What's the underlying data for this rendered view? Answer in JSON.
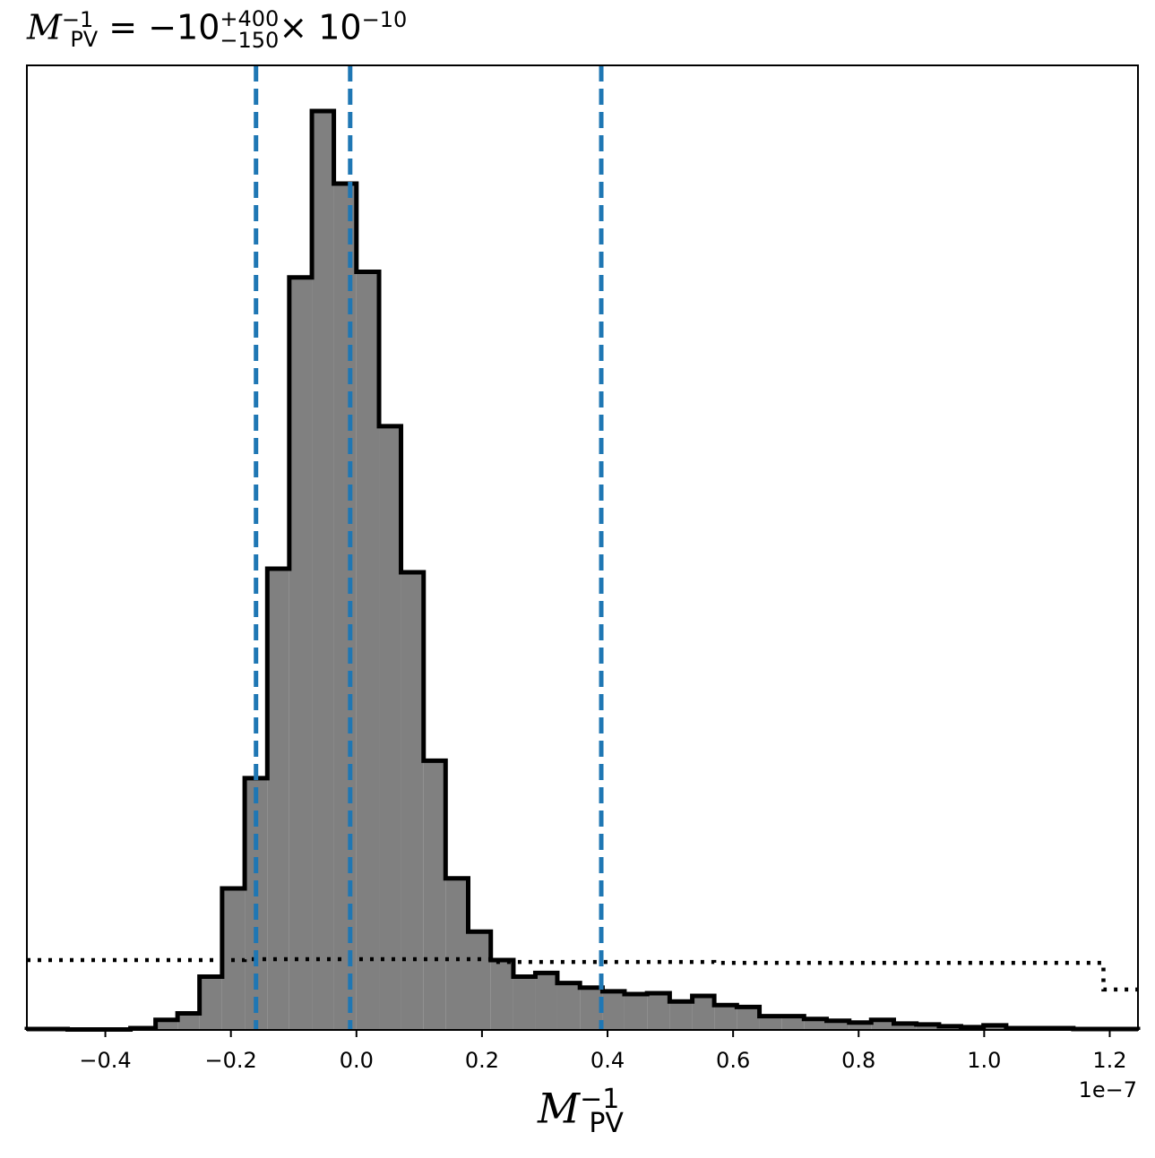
{
  "title": {
    "symbol": "M",
    "subscript": "PV",
    "superscript": "−1",
    "equals": " = −10",
    "err_plus": "+400",
    "err_minus": "−150",
    "times": "× 10",
    "exponent": "−10"
  },
  "xlabel": {
    "symbol": "M",
    "subscript": "PV",
    "superscript": "−1"
  },
  "offset_text": "1e−7",
  "chart_data": {
    "type": "histogram",
    "x_unit_scale": 1e-07,
    "xlim": [
      -0.525,
      1.245
    ],
    "ylim": [
      0,
      1
    ],
    "grid": false,
    "xticks": [
      {
        "value": -0.4,
        "label": "−0.4"
      },
      {
        "value": -0.2,
        "label": "−0.2"
      },
      {
        "value": 0.0,
        "label": "0.0"
      },
      {
        "value": 0.2,
        "label": "0.2"
      },
      {
        "value": 0.4,
        "label": "0.4"
      },
      {
        "value": 0.6,
        "label": "0.6"
      },
      {
        "value": 0.8,
        "label": "0.8"
      },
      {
        "value": 1.0,
        "label": "1.0"
      },
      {
        "value": 1.2,
        "label": "1.2"
      }
    ],
    "posterior": {
      "color": "#808080",
      "edge_color": "#000000",
      "bins": [
        {
          "x0": -0.36,
          "x1": -0.32,
          "h": 0.002
        },
        {
          "x0": -0.32,
          "x1": -0.285,
          "h": 0.011
        },
        {
          "x0": -0.285,
          "x1": -0.25,
          "h": 0.018
        },
        {
          "x0": -0.25,
          "x1": -0.214,
          "h": 0.058
        },
        {
          "x0": -0.214,
          "x1": -0.178,
          "h": 0.154
        },
        {
          "x0": -0.178,
          "x1": -0.142,
          "h": 0.274
        },
        {
          "x0": -0.142,
          "x1": -0.107,
          "h": 0.502
        },
        {
          "x0": -0.107,
          "x1": -0.071,
          "h": 0.819
        },
        {
          "x0": -0.071,
          "x1": -0.036,
          "h": 1.0
        },
        {
          "x0": -0.036,
          "x1": 0.0,
          "h": 0.921
        },
        {
          "x0": 0.0,
          "x1": 0.036,
          "h": 0.825
        },
        {
          "x0": 0.036,
          "x1": 0.071,
          "h": 0.657
        },
        {
          "x0": 0.071,
          "x1": 0.107,
          "h": 0.498
        },
        {
          "x0": 0.107,
          "x1": 0.142,
          "h": 0.293
        },
        {
          "x0": 0.142,
          "x1": 0.178,
          "h": 0.165
        },
        {
          "x0": 0.178,
          "x1": 0.214,
          "h": 0.107
        },
        {
          "x0": 0.214,
          "x1": 0.25,
          "h": 0.076
        },
        {
          "x0": 0.25,
          "x1": 0.285,
          "h": 0.058
        },
        {
          "x0": 0.285,
          "x1": 0.32,
          "h": 0.062
        },
        {
          "x0": 0.32,
          "x1": 0.356,
          "h": 0.051
        },
        {
          "x0": 0.356,
          "x1": 0.392,
          "h": 0.046
        },
        {
          "x0": 0.392,
          "x1": 0.427,
          "h": 0.042
        },
        {
          "x0": 0.427,
          "x1": 0.463,
          "h": 0.039
        },
        {
          "x0": 0.463,
          "x1": 0.499,
          "h": 0.04
        },
        {
          "x0": 0.499,
          "x1": 0.535,
          "h": 0.031
        },
        {
          "x0": 0.535,
          "x1": 0.57,
          "h": 0.037
        },
        {
          "x0": 0.57,
          "x1": 0.606,
          "h": 0.027
        },
        {
          "x0": 0.606,
          "x1": 0.642,
          "h": 0.025
        },
        {
          "x0": 0.642,
          "x1": 0.678,
          "h": 0.015
        },
        {
          "x0": 0.678,
          "x1": 0.713,
          "h": 0.015
        },
        {
          "x0": 0.713,
          "x1": 0.749,
          "h": 0.012
        },
        {
          "x0": 0.749,
          "x1": 0.785,
          "h": 0.01
        },
        {
          "x0": 0.785,
          "x1": 0.82,
          "h": 0.008
        },
        {
          "x0": 0.82,
          "x1": 0.856,
          "h": 0.011
        },
        {
          "x0": 0.856,
          "x1": 0.892,
          "h": 0.007
        },
        {
          "x0": 0.892,
          "x1": 0.928,
          "h": 0.006
        },
        {
          "x0": 0.928,
          "x1": 0.963,
          "h": 0.004
        },
        {
          "x0": 0.963,
          "x1": 0.999,
          "h": 0.003
        },
        {
          "x0": 0.999,
          "x1": 1.035,
          "h": 0.005
        },
        {
          "x0": 1.035,
          "x1": 1.07,
          "h": 0.002
        },
        {
          "x0": 1.07,
          "x1": 1.106,
          "h": 0.002
        },
        {
          "x0": 1.106,
          "x1": 1.142,
          "h": 0.002
        },
        {
          "x0": 1.142,
          "x1": 1.178,
          "h": 0.001
        },
        {
          "x0": 1.178,
          "x1": 1.214,
          "h": 0.001
        },
        {
          "x0": 1.214,
          "x1": 1.245,
          "h": 0.001
        }
      ],
      "left_tail": [
        {
          "x0": -0.525,
          "x1": -0.46,
          "h": 0.001
        },
        {
          "x0": -0.46,
          "x1": -0.4,
          "h": 0.0005
        },
        {
          "x0": -0.4,
          "x1": -0.36,
          "h": 0.0005
        }
      ]
    },
    "prior": {
      "line_style": "dotted",
      "color": "#000000",
      "steps": [
        {
          "x0": -0.525,
          "x1": -0.178,
          "h": 0.076
        },
        {
          "x0": -0.178,
          "x1": 0.214,
          "h": 0.077
        },
        {
          "x0": 0.214,
          "x1": 0.57,
          "h": 0.074
        },
        {
          "x0": 0.57,
          "x1": 1.19,
          "h": 0.073
        },
        {
          "x0": 1.19,
          "x1": 1.245,
          "h": 0.044
        }
      ]
    },
    "quantile_lines": {
      "color": "#1f77b4",
      "line_style": "dashed",
      "values": [
        -0.16,
        -0.01,
        0.39
      ]
    }
  }
}
